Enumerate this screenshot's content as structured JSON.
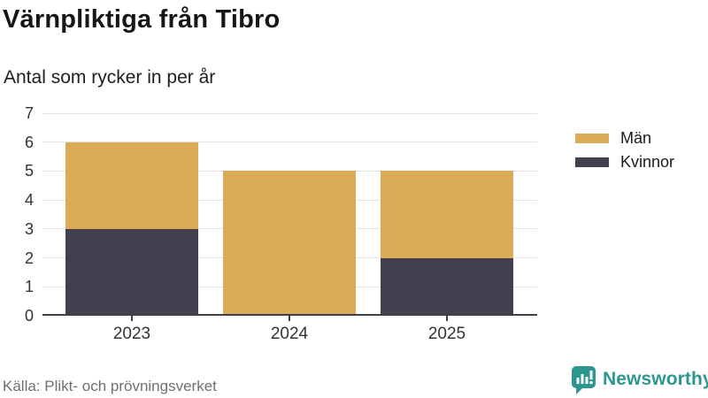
{
  "header": {
    "title": "Värnpliktiga från Tibro",
    "subtitle": "Antal som rycker in per år"
  },
  "chart_data": {
    "type": "bar",
    "stacked": true,
    "title": "Värnpliktiga från Tibro",
    "subtitle": "Antal som rycker in per år",
    "categories": [
      "2023",
      "2024",
      "2025"
    ],
    "series": [
      {
        "name": "Män",
        "color": "#D9AC55",
        "values": [
          3,
          5,
          3
        ]
      },
      {
        "name": "Kvinnor",
        "color": "#433F4E",
        "values": [
          3,
          0,
          2
        ]
      }
    ],
    "stack_bottom_to_top": [
      "Kvinnor",
      "Män"
    ],
    "totals": [
      6,
      5,
      5
    ],
    "xlabel": "",
    "ylabel": "",
    "ylim": [
      0,
      7
    ],
    "yticks": [
      0,
      1,
      2,
      3,
      4,
      5,
      6,
      7
    ],
    "grid": "horizontal",
    "grid_color": "#e3e3e3",
    "axis_color": "#3f3f46",
    "legend_position": "right"
  },
  "footer": {
    "source": "Källa: Plikt- och prövningsverket",
    "brand": "Newsworthy",
    "brand_color": "#2D968E"
  }
}
